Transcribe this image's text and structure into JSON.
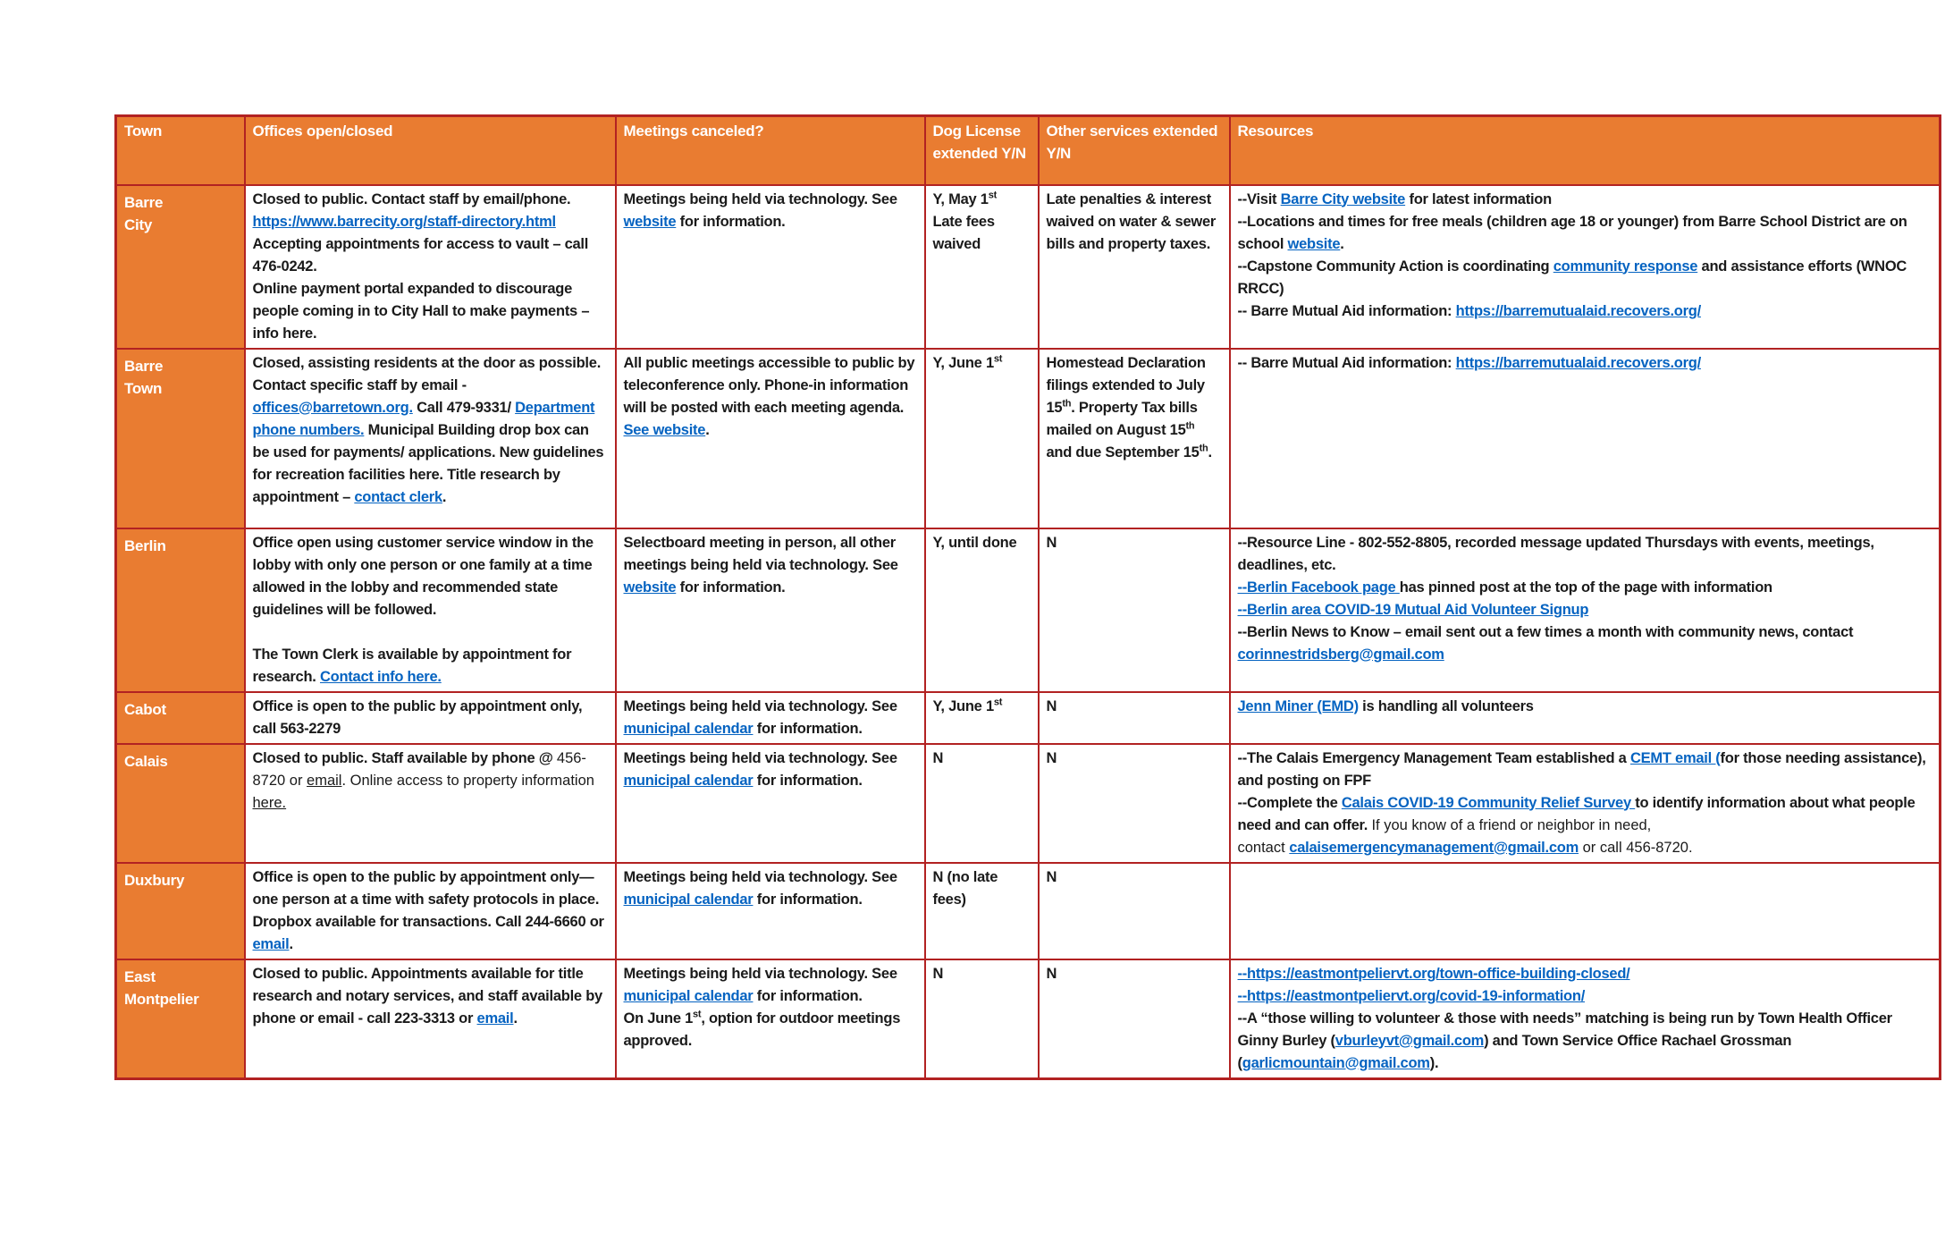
{
  "colors": {
    "header_orange": "#E97C31",
    "border_red": "#B22222",
    "link_blue": "#0563C1",
    "text_black": "#1A1A1A",
    "header_text": "#FFFFFF"
  },
  "table": {
    "headers": [
      "Town",
      "Offices open/closed",
      "Meetings canceled?",
      "Dog License extended Y/N",
      "Other services extended Y/N",
      "Resources"
    ],
    "rows": [
      {
        "town": "Barre\nCity",
        "offices": [
          {
            "t": "Closed to public.   Contact staff by email/phone. "
          },
          {
            "s": "br"
          },
          {
            "t": "https://www.barrecity.org/staff-directory.html",
            "s": "link"
          },
          {
            "s": "br"
          },
          {
            "t": "Accepting appointments for access to vault – call 476-0242. "
          },
          {
            "s": "br"
          },
          {
            "t": "Online payment portal expanded to discourage people coming in to City Hall to make payments – info "
          },
          {
            "t": "here",
            "s": "ulink"
          },
          {
            "t": "."
          }
        ],
        "meetings": [
          {
            "t": "Meetings being held via technology.  See "
          },
          {
            "t": "website",
            "s": "link"
          },
          {
            "t": " for information."
          }
        ],
        "dog": [
          {
            "t": "Y, May 1"
          },
          {
            "t": "st",
            "s": "sup"
          },
          {
            "s": "br"
          },
          {
            "t": "Late fees waived"
          }
        ],
        "other": [
          {
            "t": "Late penalties & interest waived on water & sewer bills and property taxes."
          }
        ],
        "resources": [
          {
            "t": "--Visit "
          },
          {
            "t": "Barre City website",
            "s": "link"
          },
          {
            "t": " for latest information"
          },
          {
            "s": "br"
          },
          {
            "t": "--Locations and times for free meals (children age 18 or younger) from Barre School District are on school "
          },
          {
            "t": "website",
            "s": "link"
          },
          {
            "t": "."
          },
          {
            "s": "br"
          },
          {
            "t": "--Capstone Community Action is coordinating "
          },
          {
            "t": "community response",
            "s": "link"
          },
          {
            "t": " and assistance efforts (WNOC RRCC)"
          },
          {
            "s": "br"
          },
          {
            "t": "-- Barre Mutual Aid information:  "
          },
          {
            "t": "https://barremutualaid.recovers.org/",
            "s": "link"
          }
        ]
      },
      {
        "town": "Barre\nTown",
        "offices": [
          {
            "t": "Closed, assisting residents at the door as possible. Contact specific staff by email - "
          },
          {
            "t": "offices@barretown.org.",
            "s": "link"
          },
          {
            "t": " Call 479-9331/ "
          },
          {
            "t": "Department phone numbers.",
            "s": "link"
          },
          {
            "t": " Municipal Building drop box can be used for payments/ applications.  New guidelines for recreation facilities "
          },
          {
            "t": "here.",
            "s": "ulink"
          },
          {
            "t": "   Title research by appointment – "
          },
          {
            "t": "contact clerk",
            "s": "link"
          },
          {
            "t": "."
          }
        ],
        "meetings": [
          {
            "t": "All public meetings accessible to public by teleconference only.  Phone-in information will be posted with each meeting agenda.  "
          },
          {
            "t": "See website",
            "s": "link"
          },
          {
            "t": "."
          }
        ],
        "dog": [
          {
            "t": "Y, June 1"
          },
          {
            "t": "st",
            "s": "sup"
          }
        ],
        "other": [
          {
            "t": "Homestead Declaration filings extended to July 15"
          },
          {
            "t": "th",
            "s": "sup"
          },
          {
            "t": ". Property Tax bills mailed on August 15"
          },
          {
            "t": "th",
            "s": "sup"
          },
          {
            "t": " and due September 15"
          },
          {
            "t": "th",
            "s": "sup"
          },
          {
            "t": "."
          }
        ],
        "resources": [
          {
            "t": "-- Barre Mutual Aid information:  "
          },
          {
            "t": "https://barremutualaid.recovers.org/",
            "s": "link"
          }
        ]
      },
      {
        "town": "Berlin",
        "offices": [
          {
            "t": "Office open using customer service window in the lobby with only one person or one family at a time allowed in the lobby and recommended state guidelines will be followed."
          },
          {
            "s": "br"
          },
          {
            "s": "br"
          },
          {
            "t": "The Town Clerk is available by appointment for research.  "
          },
          {
            "t": "Contact info here.",
            "s": "link"
          }
        ],
        "meetings": [
          {
            "t": "Selectboard meeting in person, all other meetings being held via technology.  See "
          },
          {
            "t": "website",
            "s": "link"
          },
          {
            "t": " for information."
          }
        ],
        "dog": [
          {
            "t": "Y, until done"
          }
        ],
        "other": [
          {
            "t": "N"
          }
        ],
        "resources": [
          {
            "t": "--Resource Line - 802-552-8805, recorded message updated Thursdays with events, meetings, deadlines, etc."
          },
          {
            "s": "br"
          },
          {
            "t": "--Berlin Facebook page ",
            "s": "link"
          },
          {
            "t": "has pinned post at the top of the page with information"
          },
          {
            "s": "br"
          },
          {
            "t": "--Berlin area COVID-19 Mutual Aid Volunteer Signup",
            "s": "link"
          },
          {
            "s": "br"
          },
          {
            "t": "--Berlin News to Know – email sent out a few times a month with community news, contact "
          },
          {
            "t": "corinnestridsberg@gmail.com",
            "s": "link"
          }
        ]
      },
      {
        "town": "Cabot",
        "offices": [
          {
            "t": "Office is open to the public by appointment only, call  563-2279"
          }
        ],
        "meetings": [
          {
            "t": "Meetings being held via technology.  See "
          },
          {
            "t": "municipal calendar",
            "s": "link"
          },
          {
            "t": " for information."
          }
        ],
        "dog": [
          {
            "t": "Y, June 1"
          },
          {
            "t": "st",
            "s": "sup"
          }
        ],
        "other": [
          {
            "t": "N"
          }
        ],
        "resources": [
          {
            "t": "Jenn Miner (EMD)",
            "s": "link"
          },
          {
            "t": " is handling all volunteers"
          }
        ]
      },
      {
        "town": "Calais",
        "offices": [
          {
            "t": "Closed to public. Staff available by phone @ "
          },
          {
            "t": "456-8720 or ",
            "s": "light"
          },
          {
            "t": "email",
            "s": "ulight"
          },
          {
            "t": ".  Online access to property information ",
            "s": "light"
          },
          {
            "t": "here.",
            "s": "ulight"
          }
        ],
        "meetings": [
          {
            "t": "Meetings being held via technology.  See "
          },
          {
            "t": "municipal calendar",
            "s": "link"
          },
          {
            "t": " for information."
          }
        ],
        "dog": [
          {
            "t": "N"
          }
        ],
        "other": [
          {
            "t": "N"
          }
        ],
        "resources": [
          {
            "t": "--The Calais Emergency Management Team established a "
          },
          {
            "t": "CEMT email (",
            "s": "link"
          },
          {
            "t": "for those needing assistance), and posting on FPF"
          },
          {
            "s": "br"
          },
          {
            "t": "--Complete the "
          },
          {
            "t": "Calais COVID-19 Community Relief Survey ",
            "s": "link"
          },
          {
            "t": "to identify information about what people need and can offer. "
          },
          {
            "t": "If you know of a friend or neighbor in need,",
            "s": "light"
          },
          {
            "s": "br"
          },
          {
            "t": "contact ",
            "s": "light"
          },
          {
            "t": "calaisemergencymanagement@gmail.com",
            "s": "link"
          },
          {
            "t": " or call 456-8720.",
            "s": "light"
          }
        ]
      },
      {
        "town": "Duxbury",
        "offices": [
          {
            "t": "Office is open to the public by appointment only—one person at a time with safety protocols in place.  Dropbox available for transactions.  Call 244-6660 or "
          },
          {
            "t": "email",
            "s": "link"
          },
          {
            "t": "."
          }
        ],
        "meetings": [
          {
            "t": "Meetings being held via technology.  See "
          },
          {
            "t": "municipal calendar",
            "s": "link"
          },
          {
            "t": " for information."
          }
        ],
        "dog": [
          {
            "t": "N (no late fees)"
          }
        ],
        "other": [
          {
            "t": "N"
          }
        ],
        "resources": []
      },
      {
        "town": "East\nMontpelier",
        "offices": [
          {
            "t": "Closed to public. Appointments available for title research and notary services, and staff available by phone or email - call 223-3313 or "
          },
          {
            "t": "email",
            "s": "link"
          },
          {
            "t": "."
          }
        ],
        "meetings": [
          {
            "t": "Meetings being held via technology.  See "
          },
          {
            "t": "municipal calendar",
            "s": "link"
          },
          {
            "t": " for information."
          },
          {
            "s": "br"
          },
          {
            "t": "On June 1"
          },
          {
            "t": "st",
            "s": "sup"
          },
          {
            "t": ", option for outdoor meetings approved."
          }
        ],
        "dog": [
          {
            "t": "N"
          }
        ],
        "other": [
          {
            "t": "N"
          }
        ],
        "resources": [
          {
            "t": "--https://eastmontpeliervt.org/town-office-building-closed/",
            "s": "link"
          },
          {
            "s": "br"
          },
          {
            "t": "--https://eastmontpeliervt.org/covid-19-information/",
            "s": "link"
          },
          {
            "s": "br"
          },
          {
            "t": "--A “those willing to volunteer & those with needs” matching is being run by Town Health Officer Ginny Burley ("
          },
          {
            "t": "vburleyvt@gmail.com",
            "s": "link"
          },
          {
            "t": ") and Town Service Office Rachael Grossman ("
          },
          {
            "t": "garlicmountain@gmail.com",
            "s": "link"
          },
          {
            "t": ")."
          }
        ]
      }
    ]
  }
}
